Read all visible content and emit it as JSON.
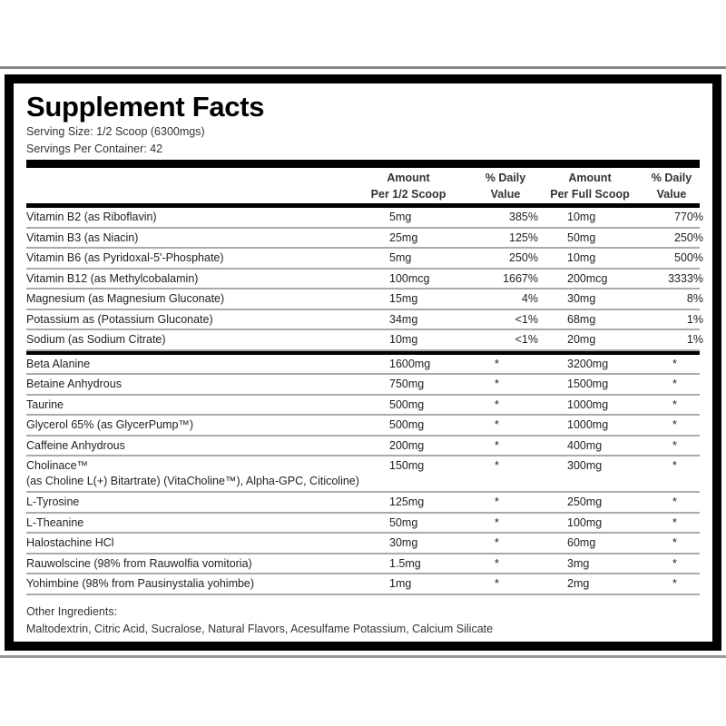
{
  "title": "Supplement Facts",
  "serving_size": "Serving Size: 1/2 Scoop (6300mgs)",
  "servings_per_container": "Servings Per Container: 42",
  "headers": {
    "amount_half_1": "Amount",
    "amount_half_2": "Per 1/2 Scoop",
    "dv_half_1": "% Daily",
    "dv_half_2": "Value",
    "amount_full_1": "Amount",
    "amount_full_2": "Per Full Scoop",
    "dv_full_1": "% Daily",
    "dv_full_2": "Value"
  },
  "vitamins": [
    {
      "name": "Vitamin B2 (as Riboflavin)",
      "half": "5mg",
      "dv_half": "385%",
      "full": "10mg",
      "dv_full": "770%"
    },
    {
      "name": "Vitamin B3 (as Niacin)",
      "half": "25mg",
      "dv_half": "125%",
      "full": "50mg",
      "dv_full": "250%"
    },
    {
      "name": "Vitamin B6 (as Pyridoxal-5'-Phosphate)",
      "half": "5mg",
      "dv_half": "250%",
      "full": "10mg",
      "dv_full": "500%"
    },
    {
      "name": "Vitamin B12 (as Methylcobalamin)",
      "half": "100mcg",
      "dv_half": "1667%",
      "full": "200mcg",
      "dv_full": "3333%"
    },
    {
      "name": "Magnesium (as Magnesium Gluconate)",
      "half": "15mg",
      "dv_half": "4%",
      "full": "30mg",
      "dv_full": "8%"
    },
    {
      "name": "Potassium  as (Potassium Gluconate)",
      "half": "34mg",
      "dv_half": "<1%",
      "full": "68mg",
      "dv_full": "1%"
    },
    {
      "name": "Sodium (as Sodium Citrate)",
      "half": "10mg",
      "dv_half": "<1%",
      "full": "20mg",
      "dv_full": "1%"
    }
  ],
  "ingredients": [
    {
      "name": "Beta Alanine",
      "half": "1600mg",
      "dv_half": "*",
      "full": "3200mg",
      "dv_full": "*"
    },
    {
      "name": "Betaine Anhydrous",
      "half": "750mg",
      "dv_half": "*",
      "full": "1500mg",
      "dv_full": "*"
    },
    {
      "name": "Taurine",
      "half": "500mg",
      "dv_half": "*",
      "full": "1000mg",
      "dv_full": "*"
    },
    {
      "name": "Glycerol 65% (as GlycerPump™)",
      "half": "500mg",
      "dv_half": "*",
      "full": "1000mg",
      "dv_full": "*"
    },
    {
      "name": "Caffeine Anhydrous",
      "half": "200mg",
      "dv_half": "*",
      "full": "400mg",
      "dv_full": "*"
    },
    {
      "name": "Cholinace™",
      "detail": "(as Choline L(+) Bitartrate) (VitaCholine™), Alpha-GPC, Citicoline)",
      "half": "150mg",
      "dv_half": "*",
      "full": "300mg",
      "dv_full": "*"
    },
    {
      "name": "L-Tyrosine",
      "half": "125mg",
      "dv_half": "*",
      "full": "250mg",
      "dv_full": "*"
    },
    {
      "name": "L-Theanine",
      "half": "50mg",
      "dv_half": "*",
      "full": "100mg",
      "dv_full": "*"
    },
    {
      "name": "Halostachine HCl",
      "half": "30mg",
      "dv_half": "*",
      "full": "60mg",
      "dv_full": "*"
    },
    {
      "name": "Rauwolscine (98% from Rauwolfia vomitoria)",
      "half": "1.5mg",
      "dv_half": "*",
      "full": "3mg",
      "dv_full": "*"
    },
    {
      "name": "Yohimbine (98% from Pausinystalia yohimbe)",
      "half": "1mg",
      "dv_half": "*",
      "full": "2mg",
      "dv_full": "*"
    }
  ],
  "other_ingredients_label": "Other Ingredients:",
  "other_ingredients": "Maltodextrin, Citric Acid, Sucralose, Natural Flavors, Acesulfame Potassium, Calcium Silicate"
}
